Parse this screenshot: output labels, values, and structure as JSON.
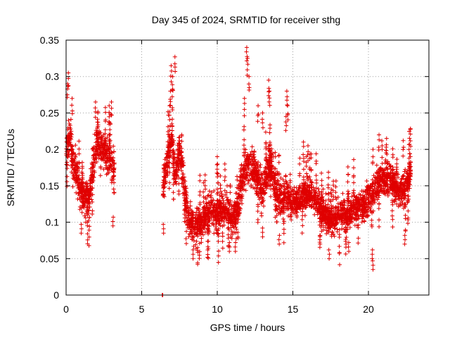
{
  "chart_data": {
    "type": "scatter",
    "title": "Day 345 of 2024, SRMTID for receiver sthg",
    "xlabel": "GPS time / hours",
    "ylabel": "SRMTID / TECUs",
    "xlim": [
      0,
      24
    ],
    "ylim": [
      0,
      0.35
    ],
    "xticks": [
      0,
      5,
      10,
      15,
      20
    ],
    "xtick_labels": [
      "0",
      "5",
      "10",
      "15",
      "20"
    ],
    "yticks": [
      0,
      0.05,
      0.1,
      0.15,
      0.2,
      0.25,
      0.3,
      0.35
    ],
    "ytick_labels": [
      "0",
      "0.05",
      "0.1",
      "0.15",
      "0.2",
      "0.25",
      "0.3",
      "0.35"
    ],
    "grid": true,
    "marker": "+",
    "color": "#e00000",
    "series": [
      {
        "name": "SRMTID",
        "segments": [
          {
            "t0": 0.0,
            "t1": 3.2,
            "profile": [
              [
                0.0,
                0.2
              ],
              [
                0.25,
                0.22
              ],
              [
                0.5,
                0.18
              ],
              [
                1.0,
                0.14
              ],
              [
                1.5,
                0.13
              ],
              [
                2.0,
                0.21
              ],
              [
                2.5,
                0.2
              ],
              [
                3.2,
                0.17
              ]
            ],
            "spread": 0.045,
            "peaks": [
              [
                0.15,
                0.305
              ],
              [
                0.1,
                0.29
              ],
              [
                0.4,
                0.27
              ],
              [
                1.95,
                0.265
              ],
              [
                2.1,
                0.25
              ],
              [
                2.85,
                0.26
              ],
              [
                3.0,
                0.265
              ]
            ],
            "lows": [
              [
                1.0,
                0.085
              ],
              [
                1.3,
                0.1
              ],
              [
                3.1,
                0.095
              ]
            ]
          },
          {
            "t0": 6.35,
            "t1": 6.4,
            "profile": [
              [
                6.35,
                0.0
              ],
              [
                6.4,
                0.0
              ]
            ],
            "spread": 0.0,
            "peaks": [],
            "lows": []
          },
          {
            "t0": 6.4,
            "t1": 8.0,
            "profile": [
              [
                6.4,
                0.15
              ],
              [
                6.8,
                0.2
              ],
              [
                7.0,
                0.22
              ],
              [
                7.2,
                0.16
              ],
              [
                7.5,
                0.2
              ],
              [
                8.0,
                0.12
              ]
            ],
            "spread": 0.04,
            "peaks": [
              [
                6.95,
                0.315
              ],
              [
                7.2,
                0.327
              ],
              [
                7.05,
                0.3
              ],
              [
                6.9,
                0.28
              ],
              [
                6.85,
                0.26
              ]
            ],
            "lows": [
              [
                6.45,
                0.085
              ]
            ]
          },
          {
            "t0": 8.0,
            "t1": 11.5,
            "profile": [
              [
                8.0,
                0.11
              ],
              [
                8.5,
                0.09
              ],
              [
                9.0,
                0.1
              ],
              [
                9.5,
                0.12
              ],
              [
                10.0,
                0.11
              ],
              [
                10.5,
                0.12
              ],
              [
                11.0,
                0.1
              ],
              [
                11.5,
                0.13
              ]
            ],
            "spread": 0.04,
            "peaks": [
              [
                9.2,
                0.165
              ],
              [
                10.0,
                0.19
              ],
              [
                10.5,
                0.18
              ]
            ],
            "lows": [
              [
                8.4,
                0.05
              ],
              [
                10.8,
                0.06
              ],
              [
                11.2,
                0.06
              ]
            ]
          },
          {
            "t0": 11.5,
            "t1": 15.0,
            "profile": [
              [
                11.5,
                0.15
              ],
              [
                12.0,
                0.18
              ],
              [
                12.5,
                0.17
              ],
              [
                13.0,
                0.14
              ],
              [
                13.5,
                0.18
              ],
              [
                14.0,
                0.13
              ],
              [
                14.5,
                0.14
              ],
              [
                15.0,
                0.12
              ]
            ],
            "spread": 0.045,
            "peaks": [
              [
                11.95,
                0.34
              ],
              [
                12.0,
                0.325
              ],
              [
                12.1,
                0.3
              ],
              [
                11.8,
                0.27
              ],
              [
                13.4,
                0.295
              ],
              [
                13.45,
                0.28
              ],
              [
                14.6,
                0.28
              ],
              [
                14.65,
                0.26
              ],
              [
                14.55,
                0.245
              ],
              [
                12.7,
                0.26
              ],
              [
                13.0,
                0.25
              ]
            ],
            "lows": [
              [
                14.1,
                0.07
              ],
              [
                13.0,
                0.08
              ]
            ]
          },
          {
            "t0": 15.0,
            "t1": 19.5,
            "profile": [
              [
                15.0,
                0.13
              ],
              [
                15.5,
                0.13
              ],
              [
                16.0,
                0.14
              ],
              [
                16.5,
                0.13
              ],
              [
                17.0,
                0.11
              ],
              [
                17.5,
                0.1
              ],
              [
                18.0,
                0.11
              ],
              [
                18.5,
                0.11
              ],
              [
                19.0,
                0.12
              ],
              [
                19.5,
                0.12
              ]
            ],
            "spread": 0.035,
            "peaks": [
              [
                15.7,
                0.21
              ],
              [
                16.0,
                0.205
              ],
              [
                15.9,
                0.19
              ]
            ],
            "lows": [
              [
                17.4,
                0.05
              ],
              [
                18.7,
                0.06
              ],
              [
                16.8,
                0.07
              ]
            ]
          },
          {
            "t0": 19.5,
            "t1": 22.8,
            "profile": [
              [
                19.5,
                0.12
              ],
              [
                20.0,
                0.13
              ],
              [
                20.5,
                0.15
              ],
              [
                21.0,
                0.16
              ],
              [
                21.5,
                0.16
              ],
              [
                22.0,
                0.14
              ],
              [
                22.5,
                0.15
              ],
              [
                22.8,
                0.17
              ]
            ],
            "spread": 0.04,
            "peaks": [
              [
                20.7,
                0.22
              ],
              [
                20.3,
                0.2
              ],
              [
                22.3,
                0.212
              ],
              [
                21.2,
                0.215
              ]
            ],
            "lows": [
              [
                20.3,
                0.035
              ],
              [
                20.25,
                0.05
              ],
              [
                22.4,
                0.07
              ]
            ]
          }
        ]
      }
    ]
  }
}
